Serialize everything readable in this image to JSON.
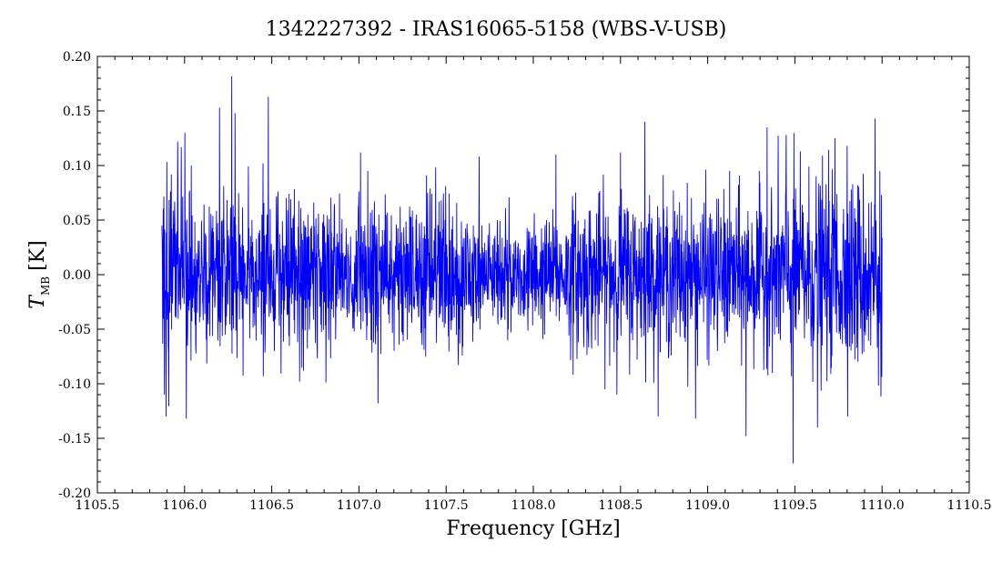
{
  "chart_data": {
    "type": "line",
    "title": "1342227392 - IRAS16065-5158 (WBS-V-USB)",
    "xlabel": "Frequency [GHz]",
    "ylabel_main": "T",
    "ylabel_sub": "MB",
    "ylabel_unit": "[K]",
    "xlim": [
      1105.5,
      1110.5
    ],
    "ylim": [
      -0.2,
      0.2
    ],
    "xticks": [
      1105.5,
      1106.0,
      1106.5,
      1107.0,
      1107.5,
      1108.0,
      1108.5,
      1109.0,
      1109.5,
      1110.0,
      1110.5
    ],
    "xtick_labels": [
      "1105.5",
      "1106.0",
      "1106.5",
      "1107.0",
      "1107.5",
      "1108.0",
      "1108.5",
      "1109.0",
      "1109.5",
      "1110.0",
      "1110.5"
    ],
    "yticks": [
      -0.2,
      -0.15,
      -0.1,
      -0.05,
      0.0,
      0.05,
      0.1,
      0.15,
      0.2
    ],
    "ytick_labels": [
      "-0.20",
      "-0.15",
      "-0.10",
      "-0.05",
      "0.00",
      "0.05",
      "0.10",
      "0.15",
      "0.20"
    ],
    "grid": false,
    "line_color": "#0000ff",
    "series": [
      {
        "x_start": 1105.87,
        "x_end": 1110.0,
        "noise_rms": 0.035,
        "peak_max": 0.18,
        "peak_min": -0.175,
        "x": [
          1105.87,
          1105.96,
          1106.01,
          1106.2,
          1106.27,
          1106.29,
          1106.45,
          1106.48,
          1106.66,
          1107.01,
          1107.05,
          1107.11,
          1107.69,
          1108.13,
          1108.5,
          1108.64,
          1108.93,
          1109.22,
          1109.34,
          1109.45,
          1109.49,
          1109.63,
          1109.73,
          1109.8,
          1109.96
        ],
        "y": [
          0.045,
          0.122,
          -0.132,
          0.153,
          0.182,
          0.148,
          0.102,
          0.163,
          -0.098,
          0.112,
          0.095,
          -0.118,
          0.108,
          0.11,
          0.112,
          0.14,
          -0.132,
          -0.148,
          0.135,
          0.128,
          -0.173,
          -0.14,
          0.125,
          0.118,
          0.143
        ]
      }
    ]
  }
}
